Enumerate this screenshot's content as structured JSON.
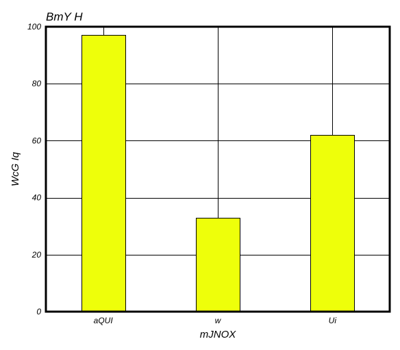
{
  "chart_data": {
    "type": "bar",
    "title": "BmY H",
    "xlabel": "mJNOX",
    "ylabel": "WcG Iq",
    "categories": [
      "aQUI",
      "w",
      "Ui"
    ],
    "values": [
      97,
      33,
      62
    ],
    "ylim": [
      0,
      100
    ],
    "yticks": [
      0,
      20,
      40,
      60,
      80,
      100
    ],
    "grid": true,
    "bar_color": "#EEFF0A"
  }
}
